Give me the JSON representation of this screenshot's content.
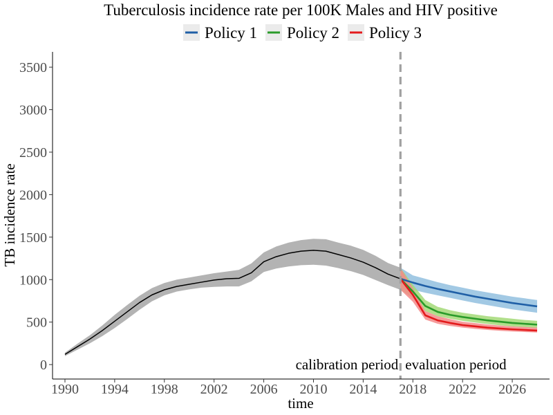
{
  "chart_data": {
    "type": "line",
    "title": "Tuberculosis incidence rate per 100K Males and HIV positive",
    "xlabel": "time",
    "ylabel": "TB incidence rate",
    "xlim": [
      1989,
      2029
    ],
    "ylim": [
      -170,
      3680
    ],
    "x_ticks": [
      1990,
      1994,
      1998,
      2002,
      2006,
      2010,
      2014,
      2018,
      2022,
      2026
    ],
    "y_ticks": [
      0,
      500,
      1000,
      1500,
      2000,
      2500,
      3000,
      3500
    ],
    "grid": false,
    "legend_position": "top",
    "divider_x": 2017,
    "annotations": {
      "left": "calibration period",
      "right": "evaluation period"
    },
    "series": [
      {
        "key": "calibration",
        "color": "#000000",
        "band_color": "#b3b3b3",
        "x": [
          1990,
          1991,
          1992,
          1993,
          1994,
          1995,
          1996,
          1997,
          1998,
          1999,
          2000,
          2001,
          2002,
          2003,
          2004,
          2005,
          2006,
          2007,
          2008,
          2009,
          2010,
          2011,
          2012,
          2013,
          2014,
          2015,
          2016,
          2017
        ],
        "y": [
          120,
          210,
          300,
          400,
          510,
          620,
          730,
          820,
          880,
          920,
          945,
          970,
          995,
          1010,
          1015,
          1080,
          1210,
          1270,
          1310,
          1335,
          1345,
          1335,
          1295,
          1255,
          1205,
          1140,
          1065,
          1010
        ],
        "lower": [
          100,
          175,
          250,
          335,
          430,
          535,
          645,
          745,
          815,
          860,
          885,
          905,
          915,
          920,
          920,
          980,
          1090,
          1130,
          1155,
          1170,
          1175,
          1165,
          1135,
          1100,
          1055,
          995,
          935,
          880
        ],
        "upper": [
          140,
          245,
          345,
          460,
          585,
          700,
          810,
          900,
          960,
          1000,
          1025,
          1050,
          1075,
          1095,
          1115,
          1190,
          1320,
          1390,
          1435,
          1465,
          1480,
          1475,
          1435,
          1400,
          1350,
          1280,
          1195,
          1140
        ]
      },
      {
        "key": "policy1",
        "name": "Policy 1",
        "color": "#1f5fa6",
        "band_color": "#92c0df",
        "x": [
          2017,
          2018,
          2019,
          2020,
          2021,
          2022,
          2023,
          2024,
          2025,
          2026,
          2027,
          2028
        ],
        "y": [
          1010,
          965,
          925,
          890,
          860,
          830,
          800,
          775,
          750,
          725,
          705,
          685
        ],
        "lower": [
          880,
          880,
          845,
          815,
          785,
          755,
          725,
          700,
          675,
          650,
          630,
          610
        ],
        "upper": [
          1140,
          1050,
          1010,
          970,
          935,
          905,
          875,
          850,
          825,
          800,
          780,
          760
        ]
      },
      {
        "key": "policy2",
        "name": "Policy 2",
        "color": "#2a9b2a",
        "band_color": "#a3d977",
        "x": [
          2017,
          2018,
          2019,
          2020,
          2021,
          2022,
          2023,
          2024,
          2025,
          2026,
          2027,
          2028
        ],
        "y": [
          1010,
          860,
          690,
          620,
          585,
          560,
          540,
          520,
          505,
          490,
          480,
          470
        ],
        "lower": [
          880,
          780,
          630,
          570,
          540,
          515,
          495,
          478,
          462,
          450,
          440,
          430
        ],
        "upper": [
          1140,
          940,
          760,
          680,
          640,
          610,
          590,
          570,
          555,
          540,
          525,
          515
        ]
      },
      {
        "key": "policy3",
        "name": "Policy 3",
        "color": "#e31a1c",
        "band_color": "#f58a8a",
        "x": [
          2017,
          2018,
          2019,
          2020,
          2021,
          2022,
          2023,
          2024,
          2025,
          2026,
          2027,
          2028
        ],
        "y": [
          1010,
          820,
          580,
          520,
          490,
          465,
          450,
          435,
          425,
          415,
          408,
          400
        ],
        "lower": [
          880,
          740,
          530,
          480,
          455,
          435,
          420,
          408,
          398,
          390,
          383,
          377
        ],
        "upper": [
          1140,
          900,
          630,
          570,
          535,
          505,
          488,
          472,
          460,
          450,
          442,
          435
        ]
      }
    ]
  }
}
